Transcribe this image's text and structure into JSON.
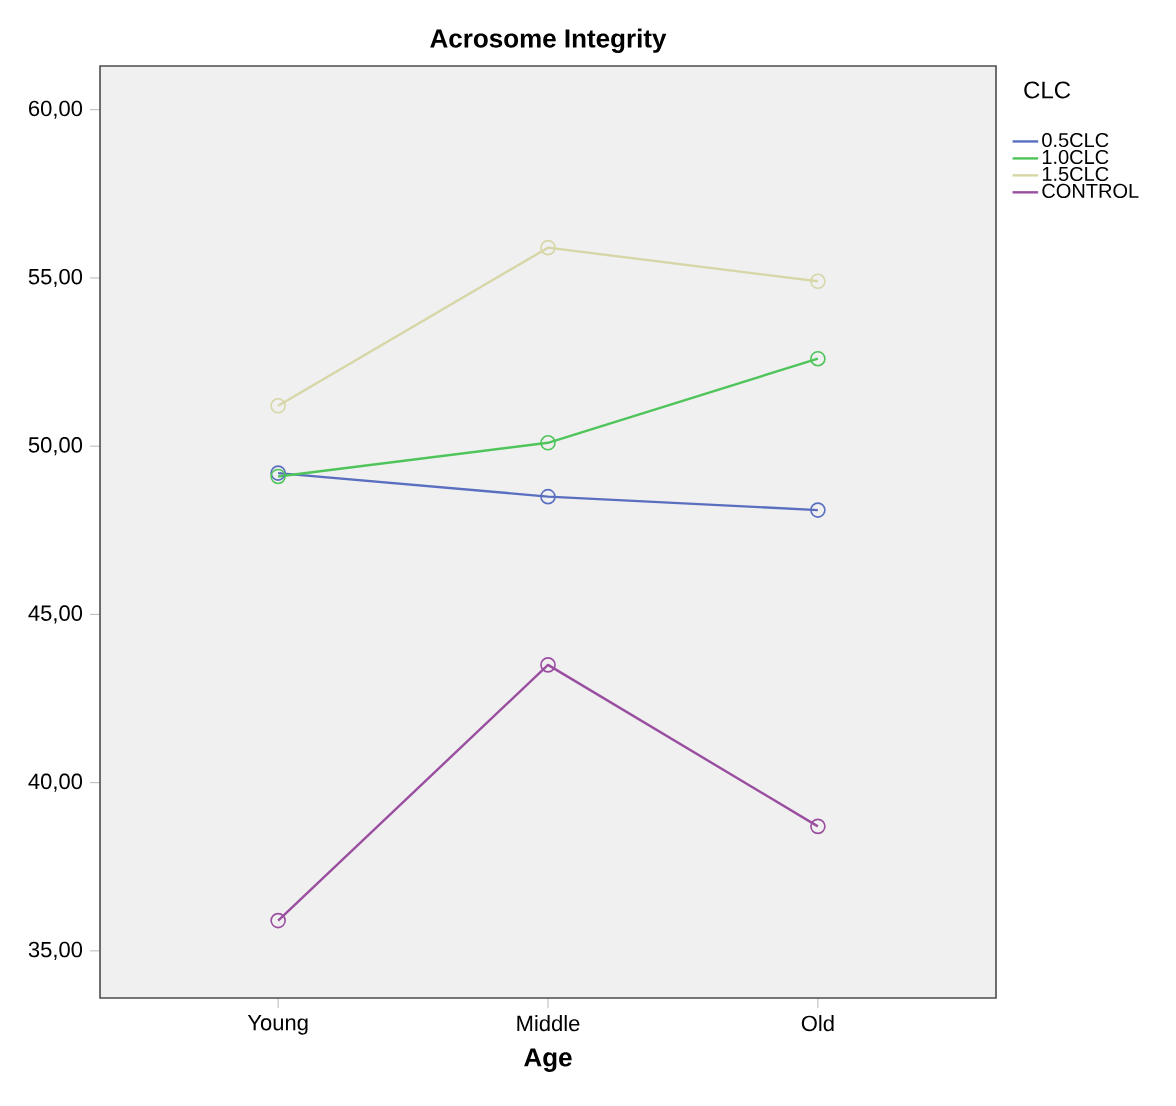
{
  "chart_data": {
    "type": "line",
    "title": "Acrosome Integrity",
    "xlabel": "Age",
    "legend_title": "CLC",
    "categories": [
      "Young",
      "Middle",
      "Old"
    ],
    "series": [
      {
        "name": "0.5CLC",
        "color": "#5a6fbf",
        "values": [
          49.2,
          48.5,
          48.1
        ]
      },
      {
        "name": "1.0CLC",
        "color": "#4fc45a",
        "values": [
          49.1,
          50.1,
          52.6
        ]
      },
      {
        "name": "1.5CLC",
        "color": "#d6d6a6",
        "values": [
          51.2,
          55.9,
          54.9
        ]
      },
      {
        "name": "CONTROL",
        "color": "#9a4ea0",
        "values": [
          35.9,
          43.5,
          38.7
        ]
      }
    ],
    "ylim": [
      33.6,
      61.3
    ],
    "yticks": [
      {
        "value": 35,
        "label": "35,00"
      },
      {
        "value": 40,
        "label": "40,00"
      },
      {
        "value": 45,
        "label": "45,00"
      },
      {
        "value": 50,
        "label": "50,00"
      },
      {
        "value": 55,
        "label": "55,00"
      },
      {
        "value": 60,
        "label": "60,00"
      }
    ],
    "legend": "right",
    "marker": "circle",
    "line_style": "solid",
    "grid": false
  }
}
